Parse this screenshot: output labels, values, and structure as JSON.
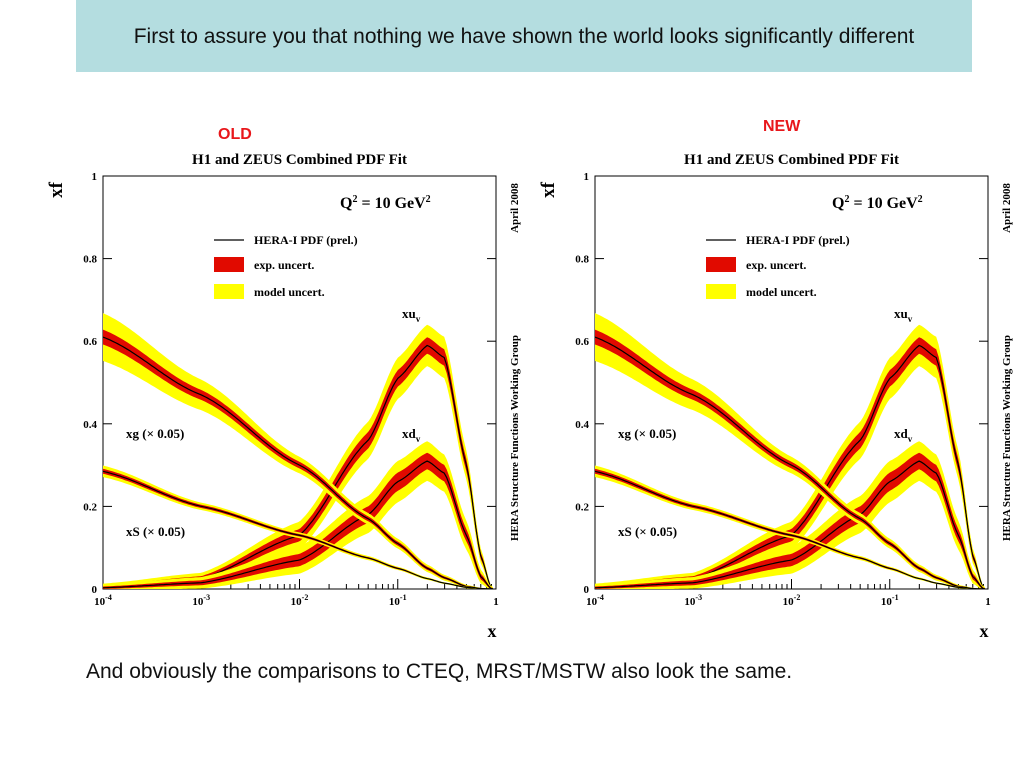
{
  "slide": {
    "title": "First to assure you that nothing we have shown the world looks significantly different",
    "old_label": "OLD",
    "new_label": "NEW",
    "footer": "And obviously the comparisons to CTEQ, MRST/MSTW also look the same."
  },
  "colors": {
    "title_bg": "#b4dde0",
    "tag_red": "#e8171b",
    "exp_band": "#e10a00",
    "model_band": "#ffff00",
    "central": "#000000"
  },
  "chart_data": [
    {
      "id": "old",
      "type": "line",
      "title": "H1 and ZEUS Combined PDF Fit",
      "ylabel": "xf",
      "xlabel": "x",
      "annotation_q2": "Q² = 10 GeV²",
      "side_date": "April 2008",
      "side_group": "HERA Structure Functions Working Group",
      "xscale": "log",
      "xlim": [
        0.0001,
        1
      ],
      "ylim": [
        0,
        1
      ],
      "xticks": [
        "10-4",
        "10-3",
        "10-2",
        "10-1",
        "1"
      ],
      "yticks": [
        "0",
        "0.2",
        "0.4",
        "0.6",
        "0.8",
        "1"
      ],
      "legend": {
        "position": "center-left",
        "entries": [
          "HERA-I PDF (prel.)",
          "exp. uncert.",
          "model uncert."
        ]
      },
      "series": [
        {
          "name": "xuv",
          "label": "xu",
          "sub": "v",
          "x": [
            0.0001,
            0.001,
            0.01,
            0.05,
            0.1,
            0.2,
            0.3,
            0.5,
            0.7,
            0.9
          ],
          "y": [
            0.005,
            0.025,
            0.13,
            0.36,
            0.51,
            0.59,
            0.56,
            0.3,
            0.08,
            0.0
          ],
          "exp_unc": [
            0.003,
            0.006,
            0.015,
            0.02,
            0.02,
            0.02,
            0.02,
            0.015,
            0.008,
            0.002
          ],
          "model_unc": [
            0.005,
            0.008,
            0.018,
            0.025,
            0.03,
            0.03,
            0.03,
            0.02,
            0.01,
            0.002
          ]
        },
        {
          "name": "xdv",
          "label": "xd",
          "sub": "v",
          "x": [
            0.0001,
            0.001,
            0.01,
            0.05,
            0.1,
            0.2,
            0.3,
            0.5,
            0.7,
            0.9
          ],
          "y": [
            0.003,
            0.015,
            0.07,
            0.18,
            0.26,
            0.31,
            0.28,
            0.13,
            0.03,
            0.0
          ],
          "exp_unc": [
            0.003,
            0.006,
            0.015,
            0.02,
            0.022,
            0.02,
            0.02,
            0.015,
            0.007,
            0.002
          ],
          "model_unc": [
            0.005,
            0.008,
            0.018,
            0.025,
            0.028,
            0.028,
            0.025,
            0.02,
            0.01,
            0.002
          ]
        },
        {
          "name": "xg (× 0.05)",
          "label": "xg (× 0.05)",
          "x": [
            0.0001,
            0.001,
            0.01,
            0.05,
            0.1,
            0.2,
            0.3,
            0.5,
            0.7,
            0.9
          ],
          "y": [
            0.61,
            0.47,
            0.3,
            0.17,
            0.11,
            0.05,
            0.027,
            0.006,
            0.001,
            0.0
          ],
          "exp_unc": [
            0.018,
            0.012,
            0.008,
            0.006,
            0.005,
            0.004,
            0.003,
            0.002,
            0.001,
            0.0
          ],
          "model_unc": [
            0.04,
            0.025,
            0.012,
            0.008,
            0.007,
            0.005,
            0.004,
            0.002,
            0.001,
            0.0
          ]
        },
        {
          "name": "xS (× 0.05)",
          "label": "xS (× 0.05)",
          "x": [
            0.0001,
            0.001,
            0.01,
            0.05,
            0.1,
            0.2,
            0.3,
            0.5,
            0.7,
            0.9
          ],
          "y": [
            0.285,
            0.2,
            0.13,
            0.075,
            0.05,
            0.025,
            0.014,
            0.004,
            0.001,
            0.0
          ],
          "exp_unc": [
            0.006,
            0.004,
            0.003,
            0.002,
            0.002,
            0.001,
            0.001,
            0.001,
            0.0,
            0.0
          ],
          "model_unc": [
            0.008,
            0.005,
            0.004,
            0.003,
            0.002,
            0.002,
            0.001,
            0.001,
            0.0,
            0.0
          ]
        }
      ]
    },
    {
      "id": "new",
      "type": "line",
      "title": "H1 and ZEUS Combined PDF Fit",
      "ylabel": "xf",
      "xlabel": "x",
      "annotation_q2": "Q² = 10 GeV²",
      "side_date": "April 2008",
      "side_group": "HERA Structure Functions Working Group",
      "xscale": "log",
      "xlim": [
        0.0001,
        1
      ],
      "ylim": [
        0,
        1
      ],
      "xticks": [
        "10-4",
        "10-3",
        "10-2",
        "10-1",
        "1"
      ],
      "yticks": [
        "0",
        "0.2",
        "0.4",
        "0.6",
        "0.8",
        "1"
      ],
      "legend": {
        "position": "center-left",
        "entries": [
          "HERA-I PDF (prel.)",
          "exp. uncert.",
          "model uncert."
        ]
      },
      "series": [
        {
          "name": "xuv",
          "label": "xu",
          "sub": "v",
          "x": [
            0.0001,
            0.001,
            0.01,
            0.05,
            0.1,
            0.2,
            0.3,
            0.5,
            0.7,
            0.9
          ],
          "y": [
            0.005,
            0.025,
            0.13,
            0.36,
            0.51,
            0.59,
            0.56,
            0.3,
            0.08,
            0.0
          ],
          "exp_unc": [
            0.003,
            0.006,
            0.015,
            0.02,
            0.02,
            0.02,
            0.02,
            0.015,
            0.008,
            0.002
          ],
          "model_unc": [
            0.005,
            0.008,
            0.018,
            0.025,
            0.03,
            0.03,
            0.03,
            0.02,
            0.01,
            0.002
          ]
        },
        {
          "name": "xdv",
          "label": "xd",
          "sub": "v",
          "x": [
            0.0001,
            0.001,
            0.01,
            0.05,
            0.1,
            0.2,
            0.3,
            0.5,
            0.7,
            0.9
          ],
          "y": [
            0.003,
            0.015,
            0.07,
            0.18,
            0.26,
            0.31,
            0.28,
            0.13,
            0.03,
            0.0
          ],
          "exp_unc": [
            0.003,
            0.006,
            0.015,
            0.02,
            0.022,
            0.02,
            0.02,
            0.015,
            0.007,
            0.002
          ],
          "model_unc": [
            0.005,
            0.008,
            0.018,
            0.025,
            0.028,
            0.028,
            0.025,
            0.02,
            0.01,
            0.002
          ]
        },
        {
          "name": "xg (× 0.05)",
          "label": "xg (× 0.05)",
          "x": [
            0.0001,
            0.001,
            0.01,
            0.05,
            0.1,
            0.2,
            0.3,
            0.5,
            0.7,
            0.9
          ],
          "y": [
            0.61,
            0.47,
            0.3,
            0.17,
            0.11,
            0.05,
            0.027,
            0.006,
            0.001,
            0.0
          ],
          "exp_unc": [
            0.018,
            0.012,
            0.008,
            0.006,
            0.005,
            0.004,
            0.003,
            0.002,
            0.001,
            0.0
          ],
          "model_unc": [
            0.04,
            0.025,
            0.012,
            0.008,
            0.007,
            0.005,
            0.004,
            0.002,
            0.001,
            0.0
          ]
        },
        {
          "name": "xS (× 0.05)",
          "label": "xS (× 0.05)",
          "x": [
            0.0001,
            0.001,
            0.01,
            0.05,
            0.1,
            0.2,
            0.3,
            0.5,
            0.7,
            0.9
          ],
          "y": [
            0.285,
            0.2,
            0.13,
            0.075,
            0.05,
            0.025,
            0.014,
            0.004,
            0.001,
            0.0
          ],
          "exp_unc": [
            0.006,
            0.004,
            0.003,
            0.002,
            0.002,
            0.001,
            0.001,
            0.001,
            0.0,
            0.0
          ],
          "model_unc": [
            0.008,
            0.005,
            0.004,
            0.003,
            0.002,
            0.002,
            0.001,
            0.001,
            0.0,
            0.0
          ]
        }
      ]
    }
  ]
}
